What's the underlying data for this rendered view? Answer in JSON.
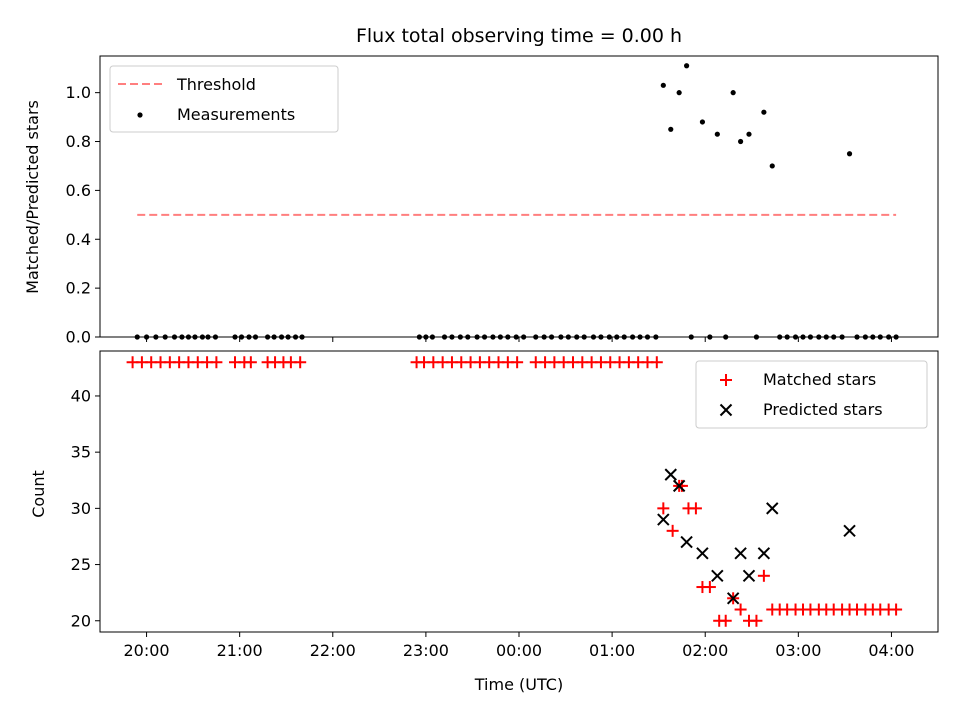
{
  "chart_data": [
    {
      "type": "scatter",
      "title": "Flux total observing time = 0.00 h",
      "xlabel": "",
      "ylabel": "Matched/Predicted stars",
      "ylim": [
        0,
        1.15
      ],
      "yticks": [
        "0.0",
        "0.2",
        "0.4",
        "0.6",
        "0.8",
        "1.0"
      ],
      "grid": false,
      "legend_position": "top-left",
      "threshold": {
        "name": "Threshold",
        "value": 0.5,
        "x_range_h": [
          -0.1,
          8.05
        ],
        "color": "#ff7f7f",
        "style": "dashed"
      },
      "series": [
        {
          "name": "Measurements",
          "color": "#000000",
          "points": [
            [
              -0.1,
              0
            ],
            [
              0.0,
              0
            ],
            [
              0.1,
              0
            ],
            [
              0.2,
              0
            ],
            [
              0.3,
              0
            ],
            [
              0.38,
              0
            ],
            [
              0.45,
              0
            ],
            [
              0.52,
              0
            ],
            [
              0.6,
              0
            ],
            [
              0.66,
              0
            ],
            [
              0.74,
              0
            ],
            [
              0.95,
              0
            ],
            [
              1.02,
              0
            ],
            [
              1.1,
              0
            ],
            [
              1.17,
              0
            ],
            [
              1.3,
              0
            ],
            [
              1.37,
              0
            ],
            [
              1.45,
              0
            ],
            [
              1.52,
              0
            ],
            [
              1.6,
              0
            ],
            [
              1.67,
              0
            ],
            [
              2.93,
              0
            ],
            [
              3.0,
              0
            ],
            [
              3.07,
              0
            ],
            [
              3.2,
              0
            ],
            [
              3.28,
              0
            ],
            [
              3.37,
              0
            ],
            [
              3.45,
              0
            ],
            [
              3.55,
              0
            ],
            [
              3.63,
              0
            ],
            [
              3.72,
              0
            ],
            [
              3.8,
              0
            ],
            [
              3.88,
              0
            ],
            [
              3.97,
              0
            ],
            [
              4.05,
              0
            ],
            [
              4.18,
              0
            ],
            [
              4.27,
              0
            ],
            [
              4.35,
              0
            ],
            [
              4.45,
              0
            ],
            [
              4.53,
              0
            ],
            [
              4.62,
              0
            ],
            [
              4.7,
              0
            ],
            [
              4.8,
              0
            ],
            [
              4.88,
              0
            ],
            [
              4.97,
              0
            ],
            [
              5.05,
              0
            ],
            [
              5.13,
              0
            ],
            [
              5.22,
              0
            ],
            [
              5.3,
              0
            ],
            [
              5.38,
              0
            ],
            [
              5.47,
              0
            ],
            [
              5.55,
              1.03
            ],
            [
              5.63,
              0.85
            ],
            [
              5.72,
              1.0
            ],
            [
              5.8,
              1.11
            ],
            [
              5.85,
              0
            ],
            [
              5.97,
              0.88
            ],
            [
              6.05,
              0
            ],
            [
              6.13,
              0.83
            ],
            [
              6.22,
              0
            ],
            [
              6.3,
              1.0
            ],
            [
              6.38,
              0.8
            ],
            [
              6.47,
              0.83
            ],
            [
              6.55,
              0
            ],
            [
              6.63,
              0.92
            ],
            [
              6.72,
              0.7
            ],
            [
              6.8,
              0
            ],
            [
              6.88,
              0
            ],
            [
              6.97,
              0
            ],
            [
              7.05,
              0
            ],
            [
              7.13,
              0
            ],
            [
              7.22,
              0
            ],
            [
              7.3,
              0
            ],
            [
              7.38,
              0
            ],
            [
              7.47,
              0
            ],
            [
              7.55,
              0.75
            ],
            [
              7.63,
              0
            ],
            [
              7.72,
              0
            ],
            [
              7.8,
              0
            ],
            [
              7.88,
              0
            ],
            [
              7.97,
              0
            ],
            [
              8.05,
              0
            ]
          ]
        }
      ]
    },
    {
      "type": "scatter",
      "title": "",
      "xlabel": "Time (UTC)",
      "ylabel": "Count",
      "ylim": [
        19,
        44
      ],
      "yticks": [
        "20",
        "25",
        "30",
        "35",
        "40"
      ],
      "xlim_hours_after_20": [
        -0.5,
        8.5
      ],
      "xticks": [
        "20:00",
        "21:00",
        "22:00",
        "23:00",
        "00:00",
        "01:00",
        "02:00",
        "03:00",
        "04:00"
      ],
      "grid": false,
      "legend_position": "top-right",
      "series": [
        {
          "name": "Matched stars",
          "marker": "plus",
          "color": "#ff0000",
          "points": [
            [
              -0.15,
              43
            ],
            [
              -0.05,
              43
            ],
            [
              0.05,
              43
            ],
            [
              0.15,
              43
            ],
            [
              0.25,
              43
            ],
            [
              0.35,
              43
            ],
            [
              0.45,
              43
            ],
            [
              0.55,
              43
            ],
            [
              0.65,
              43
            ],
            [
              0.75,
              43
            ],
            [
              0.95,
              43
            ],
            [
              1.05,
              43
            ],
            [
              1.12,
              43
            ],
            [
              1.3,
              43
            ],
            [
              1.38,
              43
            ],
            [
              1.47,
              43
            ],
            [
              1.55,
              43
            ],
            [
              1.65,
              43
            ],
            [
              2.9,
              43
            ],
            [
              2.98,
              43
            ],
            [
              3.08,
              43
            ],
            [
              3.18,
              43
            ],
            [
              3.28,
              43
            ],
            [
              3.38,
              43
            ],
            [
              3.48,
              43
            ],
            [
              3.58,
              43
            ],
            [
              3.68,
              43
            ],
            [
              3.78,
              43
            ],
            [
              3.88,
              43
            ],
            [
              3.98,
              43
            ],
            [
              4.18,
              43
            ],
            [
              4.28,
              43
            ],
            [
              4.38,
              43
            ],
            [
              4.48,
              43
            ],
            [
              4.58,
              43
            ],
            [
              4.68,
              43
            ],
            [
              4.78,
              43
            ],
            [
              4.88,
              43
            ],
            [
              4.98,
              43
            ],
            [
              5.08,
              43
            ],
            [
              5.18,
              43
            ],
            [
              5.28,
              43
            ],
            [
              5.38,
              43
            ],
            [
              5.48,
              43
            ],
            [
              5.55,
              30
            ],
            [
              5.65,
              28
            ],
            [
              5.72,
              32
            ],
            [
              5.75,
              32
            ],
            [
              5.82,
              30
            ],
            [
              5.9,
              30
            ],
            [
              5.97,
              23
            ],
            [
              6.05,
              23
            ],
            [
              6.15,
              20
            ],
            [
              6.22,
              20
            ],
            [
              6.3,
              22
            ],
            [
              6.38,
              21
            ],
            [
              6.47,
              20
            ],
            [
              6.55,
              20
            ],
            [
              6.63,
              24
            ],
            [
              6.72,
              21
            ],
            [
              6.8,
              21
            ],
            [
              6.88,
              21
            ],
            [
              6.97,
              21
            ],
            [
              7.05,
              21
            ],
            [
              7.13,
              21
            ],
            [
              7.22,
              21
            ],
            [
              7.3,
              21
            ],
            [
              7.38,
              21
            ],
            [
              7.47,
              21
            ],
            [
              7.55,
              21
            ],
            [
              7.63,
              21
            ],
            [
              7.72,
              21
            ],
            [
              7.8,
              21
            ],
            [
              7.88,
              21
            ],
            [
              7.97,
              21
            ],
            [
              8.05,
              21
            ]
          ]
        },
        {
          "name": "Predicted stars",
          "marker": "x",
          "color": "#000000",
          "points": [
            [
              5.55,
              29
            ],
            [
              5.63,
              33
            ],
            [
              5.72,
              32
            ],
            [
              5.8,
              27
            ],
            [
              5.97,
              26
            ],
            [
              6.13,
              24
            ],
            [
              6.3,
              22
            ],
            [
              6.38,
              26
            ],
            [
              6.47,
              24
            ],
            [
              6.63,
              26
            ],
            [
              6.72,
              30
            ],
            [
              7.55,
              28
            ]
          ]
        }
      ]
    }
  ]
}
